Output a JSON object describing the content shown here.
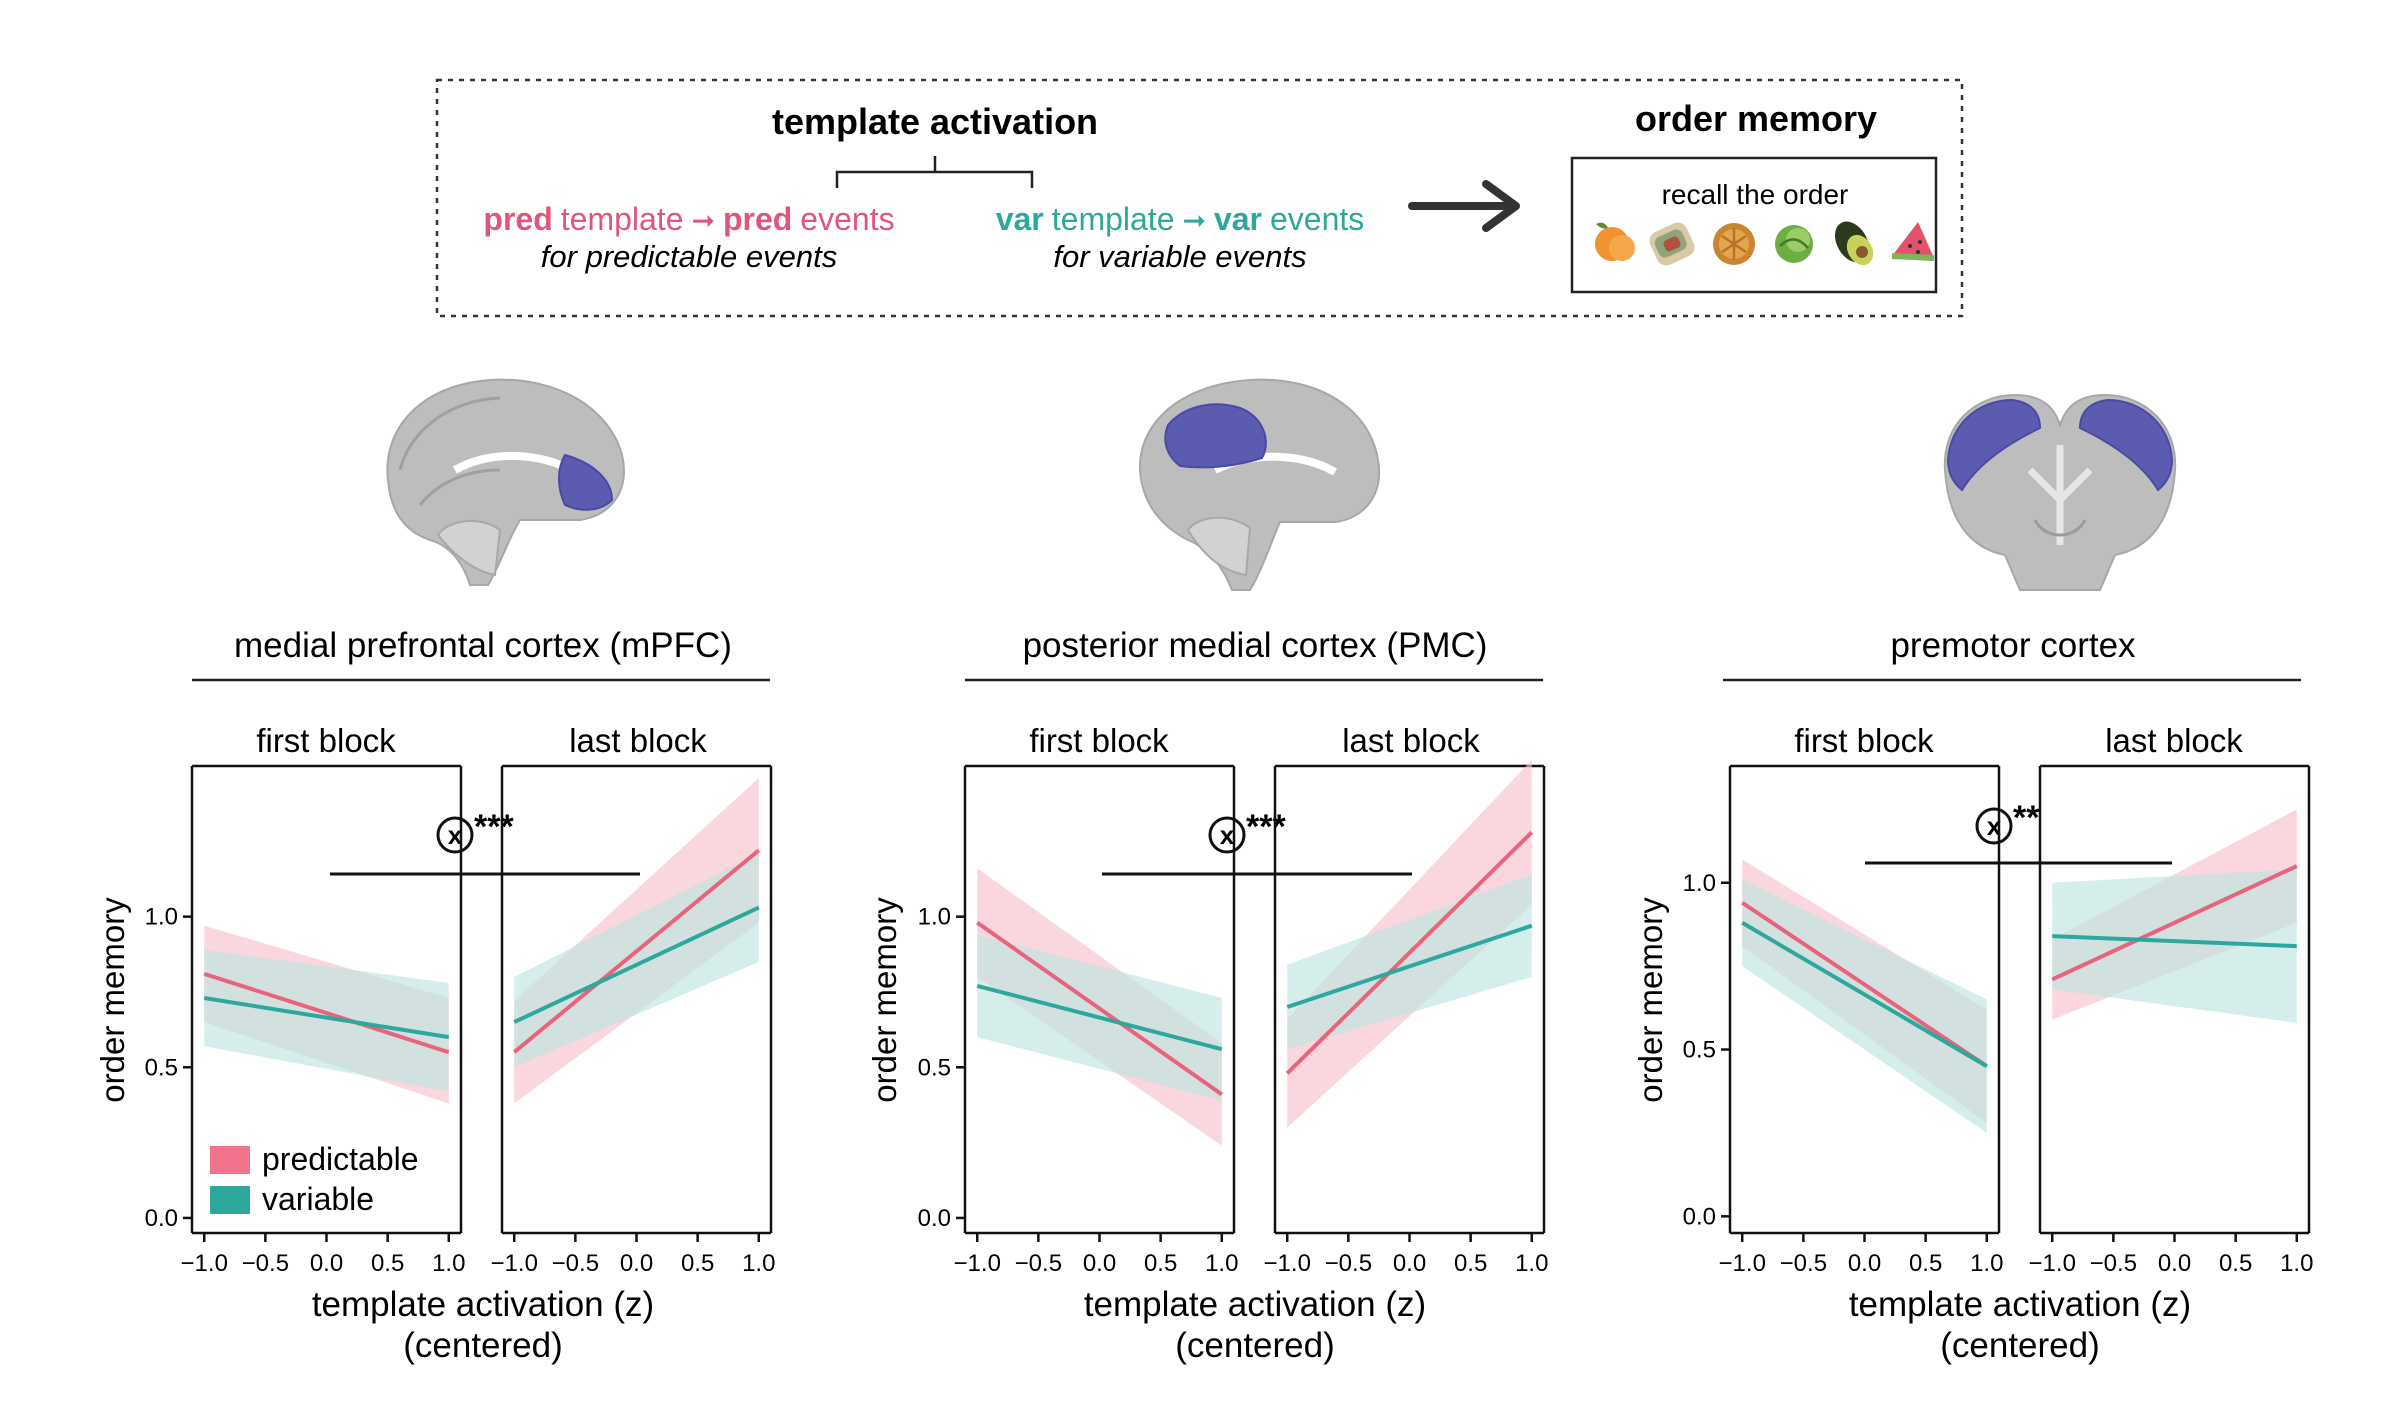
{
  "colors": {
    "predictable": "#e8647c",
    "predictable_band": "#f7c2cd",
    "variable": "#2ea89d",
    "variable_band": "#bfe5e1",
    "axis": "#111111",
    "brain_gray": "#b9b9b9",
    "roi_purple": "#5b5bb0"
  },
  "header": {
    "template_title": "template activation",
    "pred_bold": "pred",
    "pred_word1": "template",
    "pred_arrow": "➞",
    "pred_bold2": "pred",
    "pred_word2": "events",
    "pred_note": "for predictable events",
    "var_bold": "var",
    "var_word1": "template",
    "var_arrow": "➞",
    "var_bold2": "var",
    "var_word2": "events",
    "var_note": "for variable events",
    "memory_title": "order memory",
    "memory_task": "recall the order",
    "food_icons": [
      "peach-icon",
      "burrito-icon",
      "pie-icon",
      "cabbage-icon",
      "avocado-icon",
      "watermelon-icon"
    ]
  },
  "panels": [
    {
      "region": "medial prefrontal cortex (mPFC)",
      "brain_view": "sagittal-anterior-roi",
      "block_labels": [
        "first block",
        "last block"
      ],
      "interaction": "x",
      "significance": "***",
      "ylabel": "order memory",
      "xlabel": "template activation (z)",
      "xlabel2": "(centered)",
      "yticks": [
        "0.0",
        "0.5",
        "1.0"
      ],
      "xticks": [
        "−1.0",
        "−0.5",
        "0.0",
        "0.5",
        "1.0"
      ],
      "show_legend": true
    },
    {
      "region": "posterior medial cortex (PMC)",
      "brain_view": "sagittal-posterior-roi",
      "block_labels": [
        "first block",
        "last block"
      ],
      "interaction": "x",
      "significance": "***",
      "ylabel": "order memory",
      "xlabel": "template activation (z)",
      "xlabel2": "(centered)",
      "yticks": [
        "0.0",
        "0.5",
        "1.0"
      ],
      "xticks": [
        "−1.0",
        "−0.5",
        "0.0",
        "0.5",
        "1.0"
      ],
      "show_legend": false
    },
    {
      "region": "premotor cortex",
      "brain_view": "coronal-lateral-roi",
      "block_labels": [
        "first block",
        "last block"
      ],
      "interaction": "x",
      "significance": "**",
      "ylabel": "order memory",
      "xlabel": "template activation (z)",
      "xlabel2": "(centered)",
      "yticks": [
        "0.0",
        "0.5",
        "1.0"
      ],
      "xticks": [
        "−1.0",
        "−0.5",
        "0.0",
        "0.5",
        "1.0"
      ],
      "show_legend": false
    }
  ],
  "legend": [
    {
      "label": "predictable",
      "series": "predictable"
    },
    {
      "label": "variable",
      "series": "variable"
    }
  ],
  "chart_data": [
    {
      "type": "line",
      "panel": "medial prefrontal cortex (mPFC)",
      "facet": "first block",
      "xlim": [
        -1.1,
        1.1
      ],
      "ylim": [
        -0.05,
        1.5
      ],
      "x": [
        -1.0,
        1.0
      ],
      "series": [
        {
          "name": "predictable",
          "values": [
            0.81,
            0.55
          ],
          "ci_low": [
            0.65,
            0.38
          ],
          "ci_high": [
            0.97,
            0.73
          ]
        },
        {
          "name": "variable",
          "values": [
            0.73,
            0.6
          ],
          "ci_low": [
            0.57,
            0.42
          ],
          "ci_high": [
            0.89,
            0.78
          ]
        }
      ]
    },
    {
      "type": "line",
      "panel": "medial prefrontal cortex (mPFC)",
      "facet": "last block",
      "xlim": [
        -1.1,
        1.1
      ],
      "ylim": [
        -0.05,
        1.5
      ],
      "x": [
        -1.0,
        1.0
      ],
      "series": [
        {
          "name": "predictable",
          "values": [
            0.55,
            1.22
          ],
          "ci_low": [
            0.38,
            0.98
          ],
          "ci_high": [
            0.72,
            1.46
          ]
        },
        {
          "name": "variable",
          "values": [
            0.65,
            1.03
          ],
          "ci_low": [
            0.5,
            0.85
          ],
          "ci_high": [
            0.8,
            1.21
          ]
        }
      ]
    },
    {
      "type": "line",
      "panel": "posterior medial cortex (PMC)",
      "facet": "first block",
      "xlim": [
        -1.1,
        1.1
      ],
      "ylim": [
        -0.05,
        1.5
      ],
      "x": [
        -1.0,
        1.0
      ],
      "series": [
        {
          "name": "predictable",
          "values": [
            0.98,
            0.41
          ],
          "ci_low": [
            0.8,
            0.24
          ],
          "ci_high": [
            1.16,
            0.58
          ]
        },
        {
          "name": "variable",
          "values": [
            0.77,
            0.56
          ],
          "ci_low": [
            0.6,
            0.39
          ],
          "ci_high": [
            0.94,
            0.73
          ]
        }
      ]
    },
    {
      "type": "line",
      "panel": "posterior medial cortex (PMC)",
      "facet": "last block",
      "xlim": [
        -1.1,
        1.1
      ],
      "ylim": [
        -0.05,
        1.5
      ],
      "x": [
        -1.0,
        1.0
      ],
      "series": [
        {
          "name": "predictable",
          "values": [
            0.48,
            1.28
          ],
          "ci_low": [
            0.3,
            1.04
          ],
          "ci_high": [
            0.66,
            1.52
          ]
        },
        {
          "name": "variable",
          "values": [
            0.7,
            0.97
          ],
          "ci_low": [
            0.56,
            0.8
          ],
          "ci_high": [
            0.84,
            1.14
          ]
        }
      ]
    },
    {
      "type": "line",
      "panel": "premotor cortex",
      "facet": "first block",
      "xlim": [
        -1.1,
        1.1
      ],
      "ylim": [
        -0.05,
        1.35
      ],
      "x": [
        -1.0,
        1.0
      ],
      "series": [
        {
          "name": "predictable",
          "values": [
            0.94,
            0.45
          ],
          "ci_low": [
            0.81,
            0.28
          ],
          "ci_high": [
            1.07,
            0.62
          ]
        },
        {
          "name": "variable",
          "values": [
            0.88,
            0.45
          ],
          "ci_low": [
            0.75,
            0.25
          ],
          "ci_high": [
            1.01,
            0.65
          ]
        }
      ]
    },
    {
      "type": "line",
      "panel": "premotor cortex",
      "facet": "last block",
      "xlim": [
        -1.1,
        1.1
      ],
      "ylim": [
        -0.05,
        1.35
      ],
      "x": [
        -1.0,
        1.0
      ],
      "series": [
        {
          "name": "predictable",
          "values": [
            0.71,
            1.05
          ],
          "ci_low": [
            0.59,
            0.88
          ],
          "ci_high": [
            0.83,
            1.22
          ]
        },
        {
          "name": "variable",
          "values": [
            0.84,
            0.81
          ],
          "ci_low": [
            0.68,
            0.58
          ],
          "ci_high": [
            1.0,
            1.04
          ]
        }
      ]
    }
  ]
}
